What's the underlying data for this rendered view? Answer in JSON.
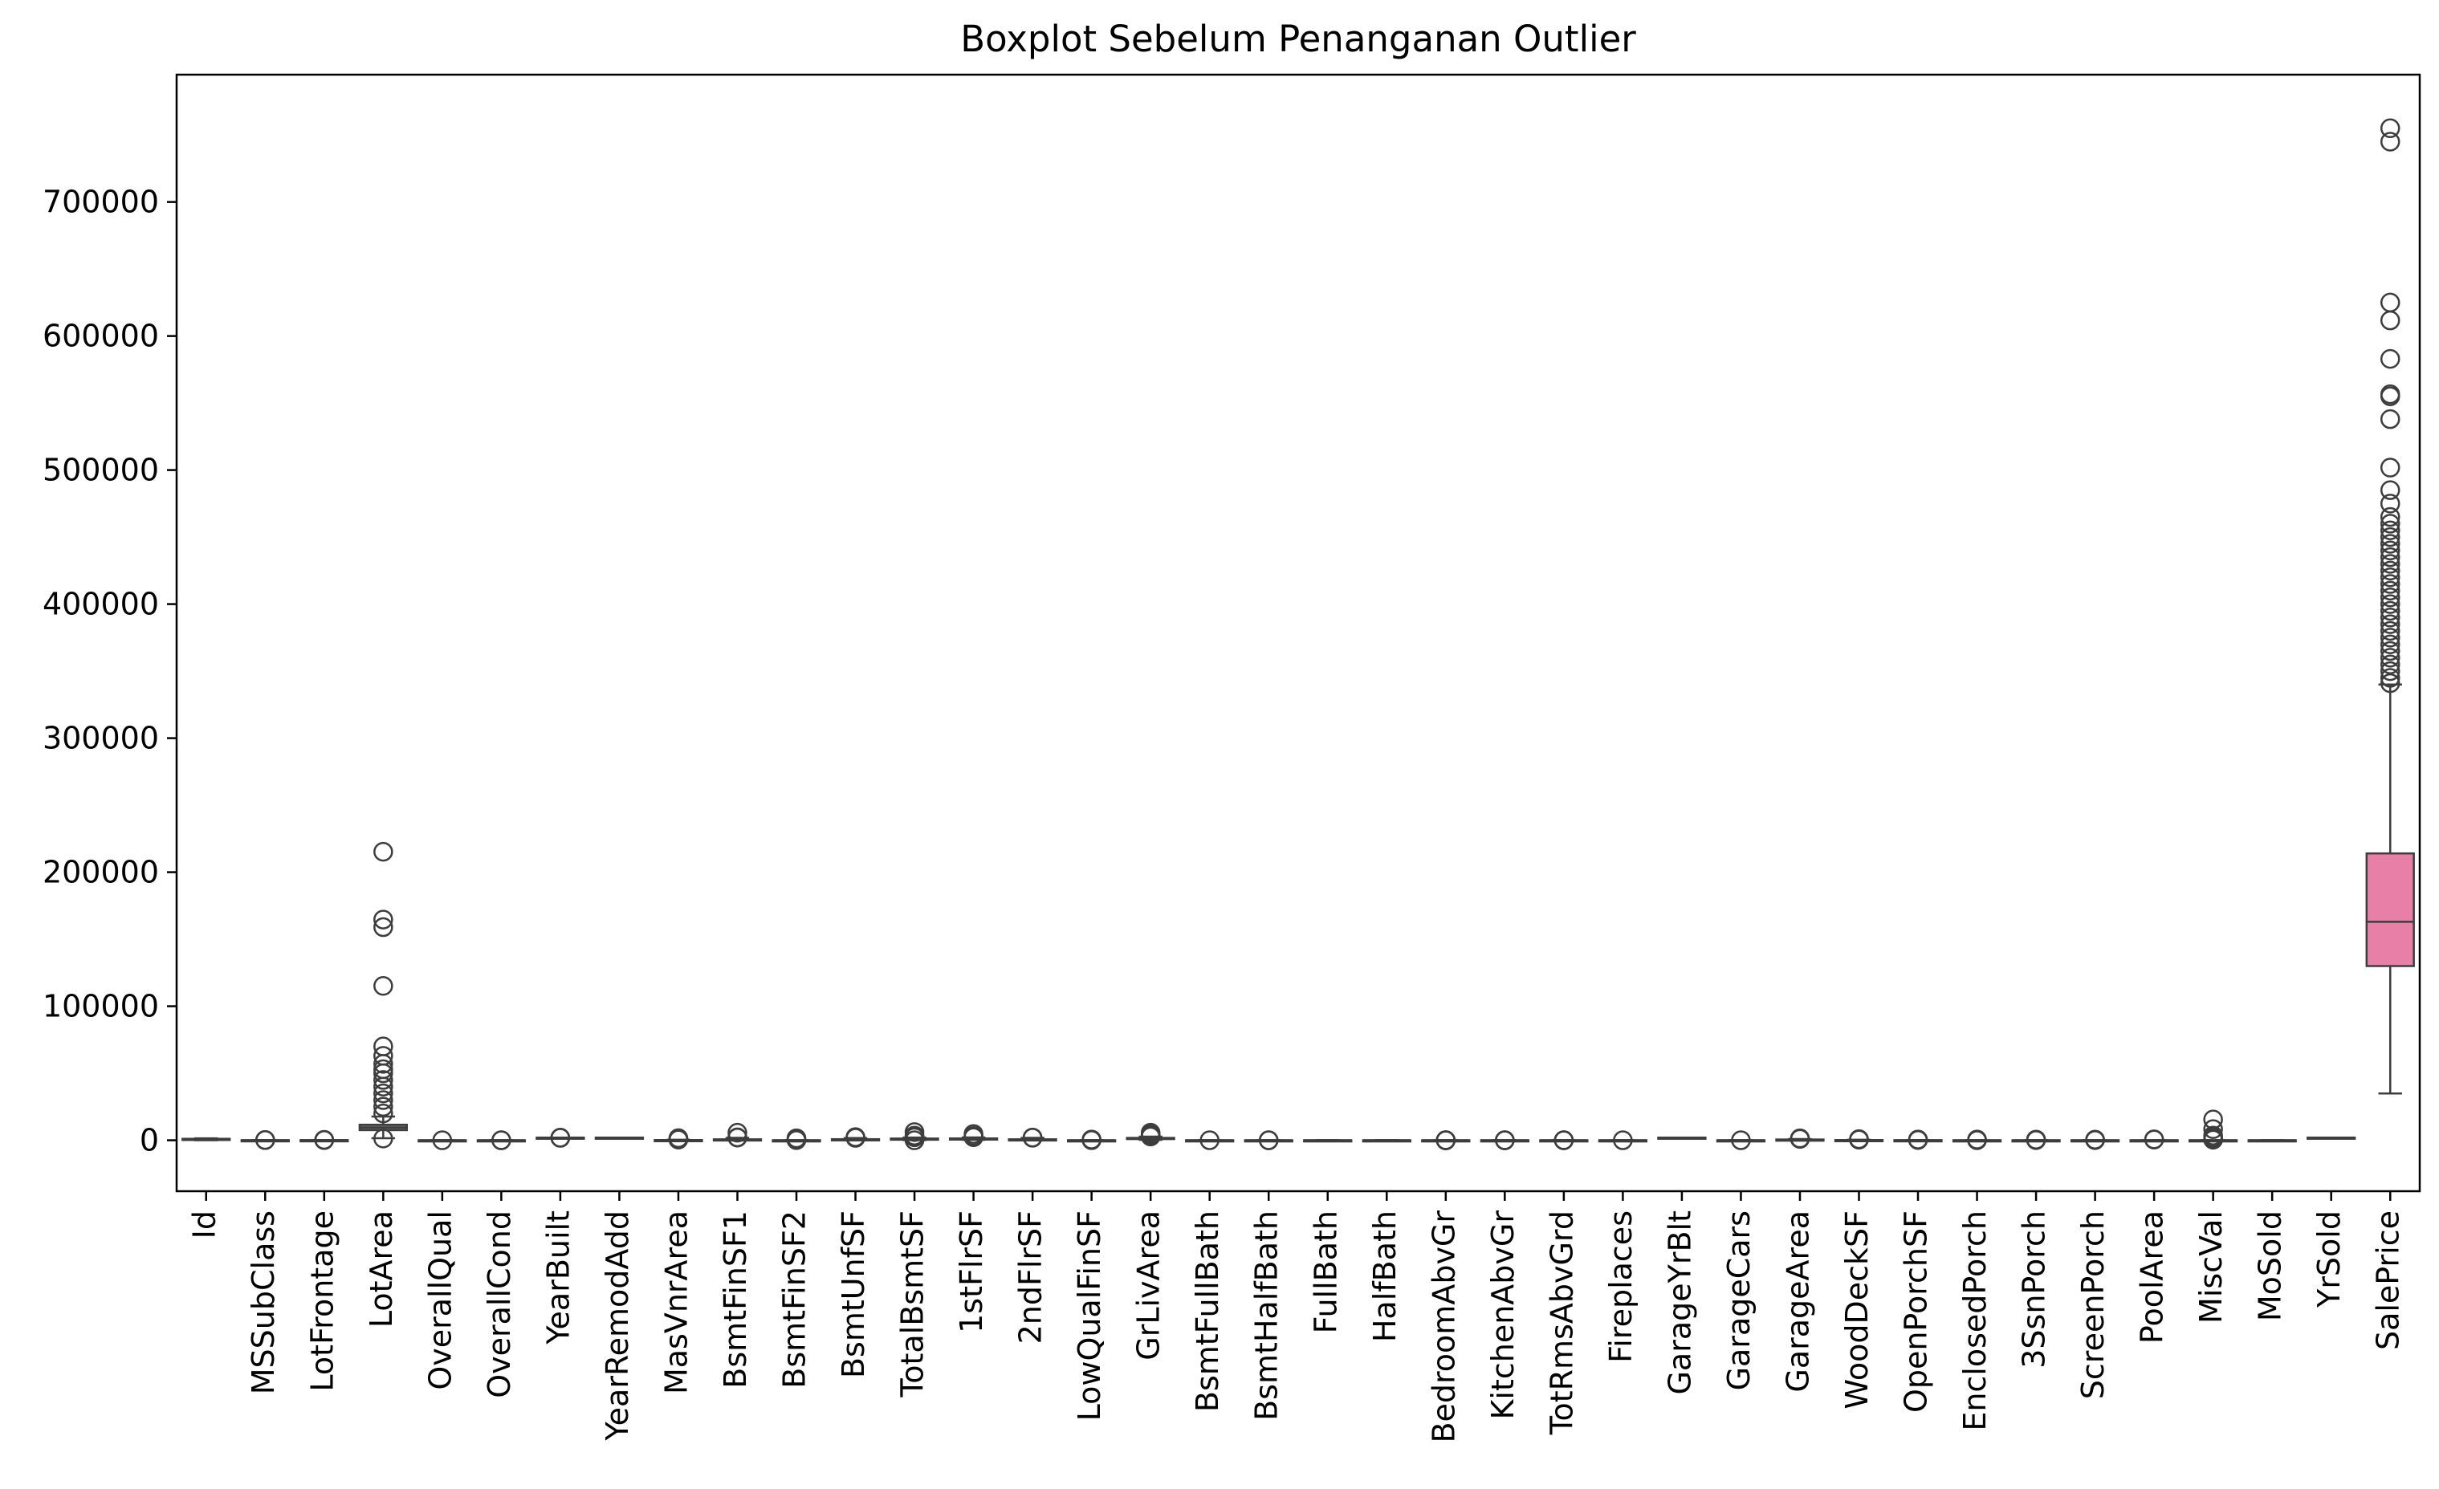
{
  "chart_data": {
    "type": "boxplot",
    "title": "Boxplot Sebelum Penanganan Outlier",
    "xlabel": "",
    "ylabel": "",
    "ylim": [
      -38000,
      795000
    ],
    "yticks": [
      0,
      100000,
      200000,
      300000,
      400000,
      500000,
      600000,
      700000
    ],
    "ytick_labels": [
      "0",
      "100000",
      "200000",
      "300000",
      "400000",
      "500000",
      "600000",
      "700000"
    ],
    "grid": false,
    "legend": "none",
    "colors": {
      "box_face_default": "#6f6f6f",
      "saleprice_box": "#e87fa6",
      "edge": "#3d3d3d",
      "axes": "#000000"
    },
    "categories": [
      "Id",
      "MSSubClass",
      "LotFrontage",
      "LotArea",
      "OverallQual",
      "OverallCond",
      "YearBuilt",
      "YearRemodAdd",
      "MasVnrArea",
      "BsmtFinSF1",
      "BsmtFinSF2",
      "BsmtUnfSF",
      "TotalBsmtSF",
      "1stFlrSF",
      "2ndFlrSF",
      "LowQualFinSF",
      "GrLivArea",
      "BsmtFullBath",
      "BsmtHalfBath",
      "FullBath",
      "HalfBath",
      "BedroomAbvGr",
      "KitchenAbvGr",
      "TotRmsAbvGrd",
      "Fireplaces",
      "GarageYrBlt",
      "GarageCars",
      "GarageArea",
      "WoodDeckSF",
      "OpenPorchSF",
      "EnclosedPorch",
      "3SsnPorch",
      "ScreenPorch",
      "PoolArea",
      "MiscVal",
      "MoSold",
      "YrSold",
      "SalePrice"
    ],
    "boxes": [
      {
        "name": "Id",
        "whislo": 1,
        "q1": 366,
        "med": 730,
        "q3": 1095,
        "whishi": 1460,
        "fliers": []
      },
      {
        "name": "MSSubClass",
        "whislo": 20,
        "q1": 20,
        "med": 50,
        "q3": 70,
        "whishi": 145,
        "fliers": [
          160,
          180,
          190
        ]
      },
      {
        "name": "LotFrontage",
        "whislo": 30,
        "q1": 59,
        "med": 69,
        "q3": 80,
        "whishi": 111,
        "fliers": [
          150,
          200,
          313
        ]
      },
      {
        "name": "LotArea",
        "whislo": 1491,
        "q1": 7553,
        "med": 9478,
        "q3": 11601,
        "whishi": 17671,
        "fliers": [
          1300,
          20000,
          25000,
          30000,
          35000,
          40000,
          45000,
          50000,
          53000,
          57000,
          63000,
          70000,
          115149,
          159000,
          164660,
          215245
        ]
      },
      {
        "name": "OverallQual",
        "whislo": 2,
        "q1": 5,
        "med": 6,
        "q3": 7,
        "whishi": 10,
        "fliers": [
          1
        ]
      },
      {
        "name": "OverallCond",
        "whislo": 3,
        "q1": 5,
        "med": 5,
        "q3": 6,
        "whishi": 9,
        "fliers": [
          1,
          2
        ]
      },
      {
        "name": "YearBuilt",
        "whislo": 1885,
        "q1": 1954,
        "med": 1973,
        "q3": 2000,
        "whishi": 2010,
        "fliers": [
          1872,
          1875,
          1880
        ]
      },
      {
        "name": "YearRemodAdd",
        "whislo": 1950,
        "q1": 1967,
        "med": 1994,
        "q3": 2004,
        "whishi": 2010,
        "fliers": []
      },
      {
        "name": "MasVnrArea",
        "whislo": 0,
        "q1": 0,
        "med": 0,
        "q3": 166,
        "whishi": 415,
        "fliers": [
          500,
          800,
          1000,
          1600
        ]
      },
      {
        "name": "BsmtFinSF1",
        "whislo": 0,
        "q1": 0,
        "med": 384,
        "q3": 712,
        "whishi": 1787,
        "fliers": [
          2000,
          2200,
          5644
        ]
      },
      {
        "name": "BsmtFinSF2",
        "whislo": 0,
        "q1": 0,
        "med": 0,
        "q3": 0,
        "whishi": 0,
        "fliers": [
          100,
          400,
          800,
          1474
        ]
      },
      {
        "name": "BsmtUnfSF",
        "whislo": 0,
        "q1": 223,
        "med": 478,
        "q3": 808,
        "whishi": 1680,
        "fliers": [
          1800,
          2000,
          2336
        ]
      },
      {
        "name": "TotalBsmtSF",
        "whislo": 105,
        "q1": 796,
        "med": 992,
        "q3": 1298,
        "whishi": 2046,
        "fliers": [
          0,
          2200,
          3000,
          3500,
          6110
        ]
      },
      {
        "name": "1stFlrSF",
        "whislo": 334,
        "q1": 882,
        "med": 1087,
        "q3": 1391,
        "whishi": 2158,
        "fliers": [
          2300,
          2800,
          3200,
          4692
        ]
      },
      {
        "name": "2ndFlrSF",
        "whislo": 0,
        "q1": 0,
        "med": 0,
        "q3": 728,
        "whishi": 1818,
        "fliers": [
          1872,
          2065
        ]
      },
      {
        "name": "LowQualFinSF",
        "whislo": 0,
        "q1": 0,
        "med": 0,
        "q3": 0,
        "whishi": 0,
        "fliers": [
          80,
          300,
          572
        ]
      },
      {
        "name": "GrLivArea",
        "whislo": 334,
        "q1": 1130,
        "med": 1464,
        "q3": 1777,
        "whishi": 2730,
        "fliers": [
          2800,
          3200,
          3600,
          4300,
          4700,
          5642
        ]
      },
      {
        "name": "BsmtFullBath",
        "whislo": 0,
        "q1": 0,
        "med": 0,
        "q3": 1,
        "whishi": 2,
        "fliers": [
          3
        ]
      },
      {
        "name": "BsmtHalfBath",
        "whislo": 0,
        "q1": 0,
        "med": 0,
        "q3": 0,
        "whishi": 0,
        "fliers": [
          1,
          2
        ]
      },
      {
        "name": "FullBath",
        "whislo": 0,
        "q1": 1,
        "med": 2,
        "q3": 2,
        "whishi": 3,
        "fliers": []
      },
      {
        "name": "HalfBath",
        "whislo": 0,
        "q1": 0,
        "med": 0,
        "q3": 1,
        "whishi": 2,
        "fliers": []
      },
      {
        "name": "BedroomAbvGr",
        "whislo": 1,
        "q1": 2,
        "med": 3,
        "q3": 3,
        "whishi": 4,
        "fliers": [
          0,
          5,
          6,
          8
        ]
      },
      {
        "name": "KitchenAbvGr",
        "whislo": 1,
        "q1": 1,
        "med": 1,
        "q3": 1,
        "whishi": 1,
        "fliers": [
          0,
          2,
          3
        ]
      },
      {
        "name": "TotRmsAbvGrd",
        "whislo": 2,
        "q1": 5,
        "med": 6,
        "q3": 7,
        "whishi": 10,
        "fliers": [
          11,
          12,
          14
        ]
      },
      {
        "name": "Fireplaces",
        "whislo": 0,
        "q1": 0,
        "med": 1,
        "q3": 1,
        "whishi": 2,
        "fliers": [
          3
        ]
      },
      {
        "name": "GarageYrBlt",
        "whislo": 1900,
        "q1": 1961,
        "med": 1980,
        "q3": 2002,
        "whishi": 2010,
        "fliers": []
      },
      {
        "name": "GarageCars",
        "whislo": 0,
        "q1": 1,
        "med": 2,
        "q3": 2,
        "whishi": 3,
        "fliers": [
          4
        ]
      },
      {
        "name": "GarageArea",
        "whislo": 0,
        "q1": 334,
        "med": 480,
        "q3": 576,
        "whishi": 936,
        "fliers": [
          1000,
          1200,
          1418
        ]
      },
      {
        "name": "WoodDeckSF",
        "whislo": 0,
        "q1": 0,
        "med": 0,
        "q3": 168,
        "whishi": 420,
        "fliers": [
          450,
          600,
          857
        ]
      },
      {
        "name": "OpenPorchSF",
        "whislo": 0,
        "q1": 0,
        "med": 25,
        "q3": 68,
        "whishi": 170,
        "fliers": [
          200,
          350,
          547
        ]
      },
      {
        "name": "EnclosedPorch",
        "whislo": 0,
        "q1": 0,
        "med": 0,
        "q3": 0,
        "whishi": 0,
        "fliers": [
          50,
          200,
          552
        ]
      },
      {
        "name": "3SsnPorch",
        "whislo": 0,
        "q1": 0,
        "med": 0,
        "q3": 0,
        "whishi": 0,
        "fliers": [
          100,
          300,
          508
        ]
      },
      {
        "name": "ScreenPorch",
        "whislo": 0,
        "q1": 0,
        "med": 0,
        "q3": 0,
        "whishi": 0,
        "fliers": [
          100,
          300,
          480
        ]
      },
      {
        "name": "PoolArea",
        "whislo": 0,
        "q1": 0,
        "med": 0,
        "q3": 0,
        "whishi": 0,
        "fliers": [
          480,
          738
        ]
      },
      {
        "name": "MiscVal",
        "whislo": 0,
        "q1": 0,
        "med": 0,
        "q3": 0,
        "whishi": 0,
        "fliers": [
          400,
          700,
          2000,
          3500,
          8300,
          15500
        ]
      },
      {
        "name": "MoSold",
        "whislo": 1,
        "q1": 5,
        "med": 6,
        "q3": 8,
        "whishi": 12,
        "fliers": []
      },
      {
        "name": "YrSold",
        "whislo": 2006,
        "q1": 2007,
        "med": 2008,
        "q3": 2009,
        "whishi": 2010,
        "fliers": []
      },
      {
        "name": "SalePrice",
        "whislo": 34900,
        "q1": 129975,
        "med": 163000,
        "q3": 214000,
        "whishi": 340000,
        "fliers": [
          341000,
          345000,
          350000,
          355000,
          360000,
          365000,
          370000,
          375000,
          380000,
          385000,
          390000,
          395000,
          400000,
          405000,
          410000,
          415000,
          420000,
          425000,
          430000,
          435000,
          440000,
          445000,
          450000,
          455000,
          460000,
          465000,
          475000,
          485000,
          501837,
          538000,
          555000,
          556581,
          582933,
          611657,
          625000,
          745000,
          755000
        ]
      }
    ]
  }
}
